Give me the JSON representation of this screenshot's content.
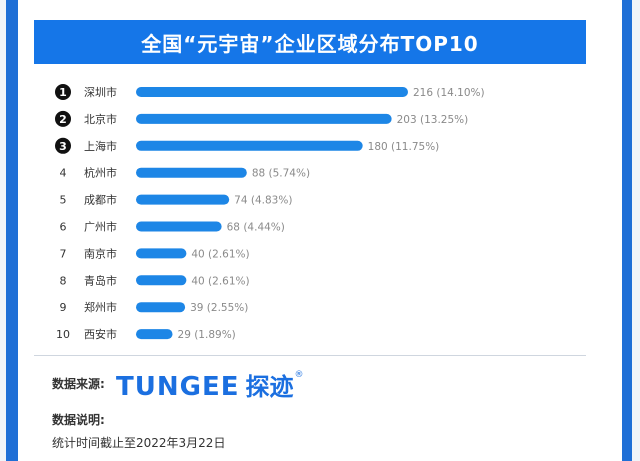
{
  "chart_data": {
    "type": "bar",
    "orientation": "horizontal",
    "title": "全国“元宇宙”企业区域分布TOP10",
    "ranks": [
      "1",
      "2",
      "3",
      "4",
      "5",
      "6",
      "7",
      "8",
      "9",
      "10"
    ],
    "categories": [
      "深圳市",
      "北京市",
      "上海市",
      "杭州市",
      "成都市",
      "广州市",
      "南京市",
      "青岛市",
      "郑州市",
      "西安市"
    ],
    "values": [
      216,
      203,
      180,
      88,
      74,
      68,
      40,
      40,
      39,
      29
    ],
    "value_labels": [
      "216 (14.10%)",
      "203 (13.25%)",
      "180 (11.75%)",
      "88 (5.74%)",
      "74 (4.83%)",
      "68 (4.44%)",
      "40 (2.61%)",
      "40 (2.61%)",
      "39 (2.55%)",
      "29 (1.89%)"
    ],
    "xlim": [
      0,
      216
    ],
    "grid": false,
    "bar_color": "#1d86e6"
  },
  "footer": {
    "source_label": "数据来源:",
    "logo_latin": "TUNGEE",
    "logo_cn": "探迹",
    "logo_mark": "®",
    "note_label": "数据说明:",
    "note_text": "统计时间截止至2022年3月22日"
  },
  "colors": {
    "frame": "#1f6fd6",
    "title_bg": "#1576e8",
    "bar": "#1d86e6"
  }
}
